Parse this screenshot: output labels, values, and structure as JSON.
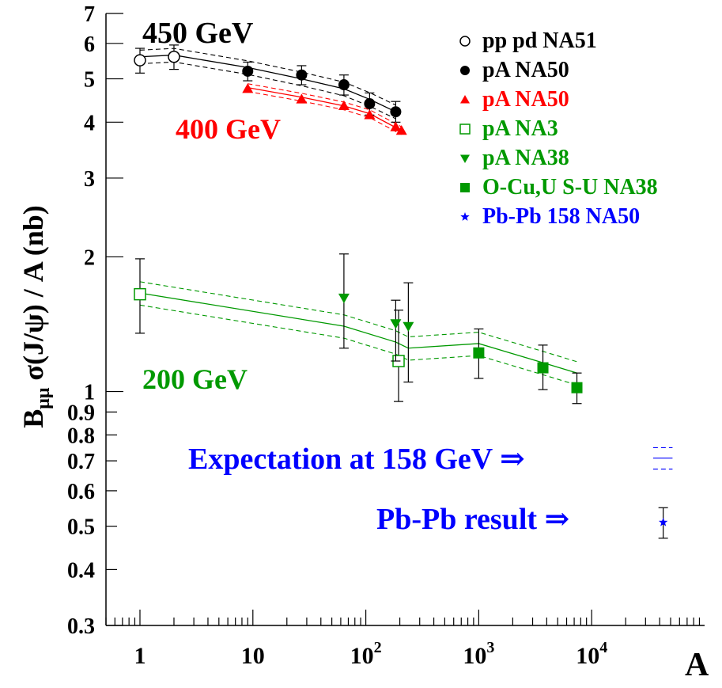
{
  "chart_data": {
    "type": "scatter",
    "xlabel": "A",
    "ylabel_main": "B",
    "ylabel_sub": "μμ",
    "ylabel_rest": " σ(J/ψ) / A (nb)",
    "xscale": "log",
    "yscale": "log",
    "xlim": [
      0.5,
      100000
    ],
    "ylim": [
      0.3,
      7
    ],
    "x_ticks": [
      {
        "value": 1,
        "base": "1",
        "exp": ""
      },
      {
        "value": 10,
        "base": "10",
        "exp": ""
      },
      {
        "value": 100,
        "base": "10",
        "exp": "2"
      },
      {
        "value": 1000,
        "base": "10",
        "exp": "3"
      },
      {
        "value": 10000,
        "base": "10",
        "exp": "4"
      }
    ],
    "y_ticks": [
      {
        "value": 0.3,
        "label": "0.3"
      },
      {
        "value": 0.4,
        "label": "0.4"
      },
      {
        "value": 0.5,
        "label": "0.5"
      },
      {
        "value": 0.6,
        "label": "0.6"
      },
      {
        "value": 0.7,
        "label": "0.7"
      },
      {
        "value": 0.8,
        "label": "0.8"
      },
      {
        "value": 0.9,
        "label": "0.9"
      },
      {
        "value": 1,
        "label": "1"
      },
      {
        "value": 2,
        "label": "2"
      },
      {
        "value": 3,
        "label": "3"
      },
      {
        "value": 4,
        "label": "4"
      },
      {
        "value": 5,
        "label": "5"
      },
      {
        "value": 6,
        "label": "6"
      },
      {
        "value": 7,
        "label": "7"
      }
    ],
    "series": [
      {
        "name": "pp pd NA51",
        "color": "#000000",
        "marker": "circle-open",
        "legend_color": "#000000",
        "points": [
          {
            "x": 1,
            "y": 5.5,
            "lo": 5.15,
            "hi": 5.85
          },
          {
            "x": 2,
            "y": 5.6,
            "lo": 5.25,
            "hi": 5.95
          }
        ]
      },
      {
        "name": "pA NA50",
        "color": "#000000",
        "marker": "circle-filled",
        "legend_color": "#000000",
        "points": [
          {
            "x": 9,
            "y": 5.2,
            "lo": 4.95,
            "hi": 5.45
          },
          {
            "x": 27,
            "y": 5.1,
            "lo": 4.85,
            "hi": 5.35
          },
          {
            "x": 64,
            "y": 4.85,
            "lo": 4.6,
            "hi": 5.1
          },
          {
            "x": 108,
            "y": 4.4,
            "lo": 4.15,
            "hi": 4.65
          },
          {
            "x": 184,
            "y": 4.22,
            "lo": 4.0,
            "hi": 4.45
          }
        ]
      },
      {
        "name": "pA NA50",
        "color": "#ff0000",
        "marker": "triangle-up",
        "legend_color": "#ff0000",
        "points": [
          {
            "x": 9,
            "y": 4.75
          },
          {
            "x": 27,
            "y": 4.5
          },
          {
            "x": 64,
            "y": 4.35
          },
          {
            "x": 108,
            "y": 4.15
          },
          {
            "x": 184,
            "y": 3.9
          },
          {
            "x": 207,
            "y": 3.83
          }
        ]
      },
      {
        "name": "pA NA3",
        "color": "#009900",
        "marker": "square-open",
        "legend_color": "#009900",
        "points": [
          {
            "x": 1,
            "y": 1.65,
            "lo": 1.35,
            "hi": 1.98
          },
          {
            "x": 195,
            "y": 1.17,
            "lo": 0.95,
            "hi": 1.52
          }
        ]
      },
      {
        "name": "pA NA38",
        "color": "#009900",
        "marker": "triangle-down",
        "legend_color": "#009900",
        "points": [
          {
            "x": 64,
            "y": 1.62,
            "lo": 1.25,
            "hi": 2.03
          },
          {
            "x": 184,
            "y": 1.42,
            "lo": 1.17,
            "hi": 1.6
          },
          {
            "x": 238,
            "y": 1.4,
            "lo": 1.05,
            "hi": 1.75
          }
        ]
      },
      {
        "name": "O-Cu,U S-U NA38",
        "color": "#009900",
        "marker": "square-filled",
        "legend_color": "#009900",
        "points": [
          {
            "x": 1000,
            "y": 1.22,
            "lo": 1.07,
            "hi": 1.38
          },
          {
            "x": 3700,
            "y": 1.13,
            "lo": 1.01,
            "hi": 1.27
          },
          {
            "x": 7400,
            "y": 1.02,
            "lo": 0.94,
            "hi": 1.1
          }
        ]
      },
      {
        "name": "Pb-Pb 158 NA50",
        "color": "#0000ff",
        "marker": "star",
        "legend_color": "#0000ff",
        "points": [
          {
            "x": 43000,
            "y": 0.51,
            "lo": 0.47,
            "hi": 0.55
          }
        ]
      }
    ],
    "fit_bands": [
      {
        "color": "#000000",
        "x": [
          1,
          2,
          9,
          27,
          64,
          108,
          184
        ],
        "y": [
          5.6,
          5.65,
          5.3,
          5.0,
          4.75,
          4.5,
          4.22
        ],
        "band": 0.035
      },
      {
        "color": "#ff0000",
        "x": [
          9,
          27,
          64,
          108,
          207
        ],
        "y": [
          4.78,
          4.55,
          4.35,
          4.18,
          3.83
        ],
        "band": 0.02
      },
      {
        "color": "#009900",
        "x": [
          1,
          64,
          184,
          238,
          1000,
          3700,
          7400
        ],
        "y": [
          1.66,
          1.4,
          1.29,
          1.25,
          1.28,
          1.16,
          1.1
        ],
        "band": 0.06
      }
    ],
    "expectation_band": {
      "color": "#0000ff",
      "x": [
        35000,
        52000
      ],
      "y": 0.71,
      "band": 0.055
    },
    "annotations": [
      {
        "text": "450 GeV",
        "color": "#000000",
        "size": 38
      },
      {
        "text": "400 GeV",
        "color": "#ff0000",
        "size": 36
      },
      {
        "text": "200 GeV",
        "color": "#009900",
        "size": 36
      },
      {
        "text": "Expectation at 158 GeV ⇒",
        "color": "#0000ff",
        "size": 38
      },
      {
        "text": "Pb-Pb result ⇒",
        "color": "#0000ff",
        "size": 38
      }
    ],
    "legend_position": "top-right",
    "grid": false
  }
}
